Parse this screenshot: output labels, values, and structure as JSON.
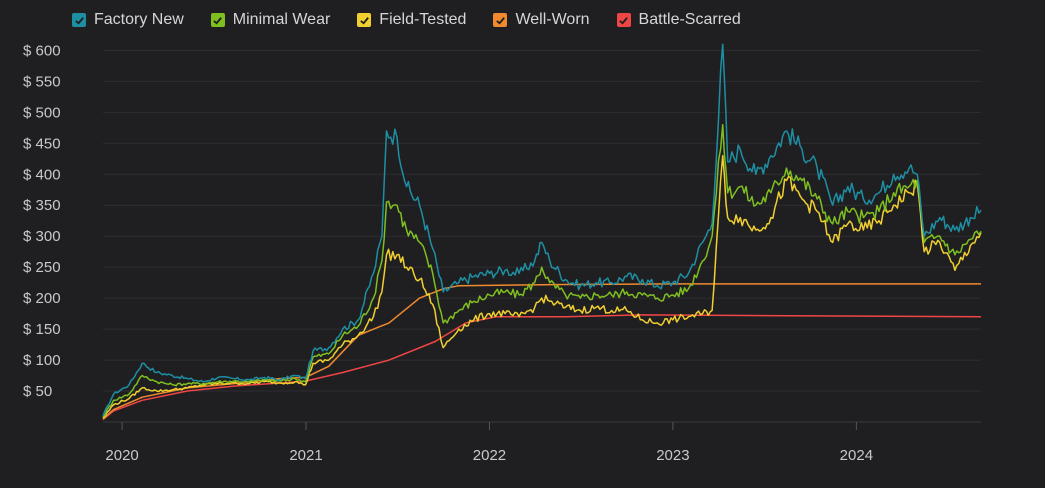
{
  "legend": [
    {
      "label": "Factory New",
      "color": "#1e8fa3",
      "checked": true
    },
    {
      "label": "Minimal Wear",
      "color": "#7fbf1f",
      "checked": true
    },
    {
      "label": "Field-Tested",
      "color": "#f0cf2e",
      "checked": true
    },
    {
      "label": "Well-Worn",
      "color": "#f08a2e",
      "checked": true
    },
    {
      "label": "Battle-Scarred",
      "color": "#f04545",
      "checked": true
    }
  ],
  "chart_data": {
    "type": "line",
    "x_axis": {
      "type": "date",
      "range": [
        "2019-11-24",
        "2024-09-05"
      ],
      "ticks": [
        "2020",
        "2021",
        "2022",
        "2023",
        "2024"
      ]
    },
    "y_axis": {
      "range": [
        0,
        620
      ],
      "ticks": [
        "$ 50",
        "$ 100",
        "$ 150",
        "$ 200",
        "$ 250",
        "$ 300",
        "$ 350",
        "$ 400",
        "$ 450",
        "$ 500",
        "$ 550",
        "$ 600"
      ],
      "tick_values": [
        50,
        100,
        150,
        200,
        250,
        300,
        350,
        400,
        450,
        500,
        550,
        600
      ]
    },
    "grid": true,
    "legend_position": "top-left",
    "series": [
      {
        "name": "Factory New",
        "color": "#1e8fa3",
        "points": [
          [
            "2019-11-24",
            10
          ],
          [
            "2019-12-15",
            45
          ],
          [
            "2020-01-15",
            60
          ],
          [
            "2020-02-10",
            95
          ],
          [
            "2020-03-10",
            80
          ],
          [
            "2020-04-10",
            75
          ],
          [
            "2020-05-10",
            70
          ],
          [
            "2020-06-10",
            65
          ],
          [
            "2020-07-10",
            72
          ],
          [
            "2020-08-10",
            70
          ],
          [
            "2020-09-10",
            68
          ],
          [
            "2020-10-10",
            72
          ],
          [
            "2020-11-10",
            68
          ],
          [
            "2020-12-10",
            75
          ],
          [
            "2020-12-31",
            70
          ],
          [
            "2021-01-15",
            115
          ],
          [
            "2021-02-15",
            120
          ],
          [
            "2021-03-15",
            150
          ],
          [
            "2021-04-15",
            165
          ],
          [
            "2021-05-15",
            240
          ],
          [
            "2021-06-01",
            300
          ],
          [
            "2021-06-10",
            470
          ],
          [
            "2021-07-01",
            460
          ],
          [
            "2021-07-20",
            380
          ],
          [
            "2021-08-15",
            350
          ],
          [
            "2021-09-10",
            280
          ],
          [
            "2021-10-01",
            210
          ],
          [
            "2021-11-01",
            225
          ],
          [
            "2021-12-01",
            235
          ],
          [
            "2022-01-01",
            240
          ],
          [
            "2022-02-01",
            245
          ],
          [
            "2022-03-01",
            240
          ],
          [
            "2022-04-01",
            260
          ],
          [
            "2022-04-15",
            290
          ],
          [
            "2022-05-01",
            260
          ],
          [
            "2022-06-01",
            230
          ],
          [
            "2022-07-01",
            220
          ],
          [
            "2022-08-01",
            225
          ],
          [
            "2022-09-01",
            225
          ],
          [
            "2022-10-01",
            235
          ],
          [
            "2022-11-01",
            230
          ],
          [
            "2022-12-01",
            220
          ],
          [
            "2023-01-01",
            225
          ],
          [
            "2023-02-01",
            240
          ],
          [
            "2023-03-01",
            290
          ],
          [
            "2023-03-20",
            320
          ],
          [
            "2023-04-10",
            610
          ],
          [
            "2023-04-20",
            420
          ],
          [
            "2023-05-15",
            440
          ],
          [
            "2023-06-15",
            400
          ],
          [
            "2023-07-15",
            430
          ],
          [
            "2023-08-15",
            470
          ],
          [
            "2023-09-15",
            440
          ],
          [
            "2023-10-15",
            410
          ],
          [
            "2023-11-15",
            350
          ],
          [
            "2023-12-15",
            380
          ],
          [
            "2024-01-15",
            360
          ],
          [
            "2024-02-15",
            370
          ],
          [
            "2024-03-15",
            400
          ],
          [
            "2024-04-15",
            410
          ],
          [
            "2024-05-01",
            400
          ],
          [
            "2024-05-15",
            300
          ],
          [
            "2024-06-15",
            330
          ],
          [
            "2024-07-15",
            310
          ],
          [
            "2024-08-15",
            330
          ],
          [
            "2024-09-05",
            342
          ]
        ]
      },
      {
        "name": "Minimal Wear",
        "color": "#7fbf1f",
        "points": [
          [
            "2019-11-24",
            8
          ],
          [
            "2019-12-15",
            35
          ],
          [
            "2020-01-15",
            45
          ],
          [
            "2020-02-10",
            75
          ],
          [
            "2020-03-10",
            65
          ],
          [
            "2020-04-10",
            60
          ],
          [
            "2020-05-10",
            62
          ],
          [
            "2020-06-10",
            62
          ],
          [
            "2020-07-10",
            65
          ],
          [
            "2020-08-10",
            66
          ],
          [
            "2020-09-10",
            65
          ],
          [
            "2020-10-10",
            68
          ],
          [
            "2020-11-10",
            66
          ],
          [
            "2020-12-10",
            70
          ],
          [
            "2020-12-31",
            65
          ],
          [
            "2021-01-15",
            105
          ],
          [
            "2021-02-15",
            110
          ],
          [
            "2021-03-15",
            140
          ],
          [
            "2021-04-15",
            155
          ],
          [
            "2021-05-15",
            200
          ],
          [
            "2021-06-01",
            260
          ],
          [
            "2021-06-10",
            355
          ],
          [
            "2021-07-01",
            350
          ],
          [
            "2021-07-20",
            310
          ],
          [
            "2021-08-15",
            290
          ],
          [
            "2021-09-10",
            240
          ],
          [
            "2021-10-01",
            160
          ],
          [
            "2021-11-01",
            180
          ],
          [
            "2021-12-01",
            195
          ],
          [
            "2022-01-01",
            205
          ],
          [
            "2022-02-01",
            210
          ],
          [
            "2022-03-01",
            205
          ],
          [
            "2022-04-01",
            225
          ],
          [
            "2022-04-15",
            250
          ],
          [
            "2022-05-01",
            225
          ],
          [
            "2022-06-01",
            205
          ],
          [
            "2022-07-01",
            200
          ],
          [
            "2022-08-01",
            205
          ],
          [
            "2022-09-01",
            205
          ],
          [
            "2022-10-01",
            210
          ],
          [
            "2022-11-01",
            205
          ],
          [
            "2022-12-01",
            200
          ],
          [
            "2023-01-01",
            205
          ],
          [
            "2023-02-01",
            215
          ],
          [
            "2023-03-01",
            260
          ],
          [
            "2023-03-20",
            300
          ],
          [
            "2023-04-10",
            480
          ],
          [
            "2023-04-20",
            370
          ],
          [
            "2023-05-15",
            380
          ],
          [
            "2023-06-15",
            350
          ],
          [
            "2023-07-15",
            370
          ],
          [
            "2023-08-15",
            410
          ],
          [
            "2023-09-15",
            390
          ],
          [
            "2023-10-15",
            360
          ],
          [
            "2023-11-15",
            320
          ],
          [
            "2023-12-15",
            340
          ],
          [
            "2024-01-15",
            330
          ],
          [
            "2024-02-15",
            340
          ],
          [
            "2024-03-15",
            370
          ],
          [
            "2024-04-15",
            380
          ],
          [
            "2024-05-01",
            390
          ],
          [
            "2024-05-15",
            290
          ],
          [
            "2024-06-15",
            300
          ],
          [
            "2024-07-15",
            270
          ],
          [
            "2024-08-15",
            295
          ],
          [
            "2024-09-05",
            308
          ]
        ]
      },
      {
        "name": "Field-Tested",
        "color": "#f0cf2e",
        "points": [
          [
            "2019-11-24",
            6
          ],
          [
            "2019-12-15",
            28
          ],
          [
            "2020-01-15",
            38
          ],
          [
            "2020-02-10",
            55
          ],
          [
            "2020-03-10",
            50
          ],
          [
            "2020-04-10",
            52
          ],
          [
            "2020-05-10",
            55
          ],
          [
            "2020-06-10",
            60
          ],
          [
            "2020-07-10",
            62
          ],
          [
            "2020-08-10",
            63
          ],
          [
            "2020-09-10",
            62
          ],
          [
            "2020-10-10",
            65
          ],
          [
            "2020-11-10",
            63
          ],
          [
            "2020-12-10",
            65
          ],
          [
            "2020-12-31",
            60
          ],
          [
            "2021-01-15",
            95
          ],
          [
            "2021-02-15",
            100
          ],
          [
            "2021-03-15",
            125
          ],
          [
            "2021-04-15",
            140
          ],
          [
            "2021-05-15",
            170
          ],
          [
            "2021-06-01",
            210
          ],
          [
            "2021-06-10",
            270
          ],
          [
            "2021-07-01",
            270
          ],
          [
            "2021-07-20",
            250
          ],
          [
            "2021-08-15",
            230
          ],
          [
            "2021-09-10",
            190
          ],
          [
            "2021-10-01",
            120
          ],
          [
            "2021-11-01",
            150
          ],
          [
            "2021-12-01",
            165
          ],
          [
            "2022-01-01",
            175
          ],
          [
            "2022-02-01",
            175
          ],
          [
            "2022-03-01",
            170
          ],
          [
            "2022-04-01",
            185
          ],
          [
            "2022-04-15",
            200
          ],
          [
            "2022-05-01",
            195
          ],
          [
            "2022-06-01",
            185
          ],
          [
            "2022-07-01",
            180
          ],
          [
            "2022-08-01",
            185
          ],
          [
            "2022-09-01",
            180
          ],
          [
            "2022-10-01",
            180
          ],
          [
            "2022-11-01",
            165
          ],
          [
            "2022-12-01",
            160
          ],
          [
            "2023-01-01",
            165
          ],
          [
            "2023-02-01",
            170
          ],
          [
            "2023-03-01",
            175
          ],
          [
            "2023-03-20",
            180
          ],
          [
            "2023-04-10",
            430
          ],
          [
            "2023-04-20",
            330
          ],
          [
            "2023-05-15",
            330
          ],
          [
            "2023-06-15",
            310
          ],
          [
            "2023-07-15",
            330
          ],
          [
            "2023-08-15",
            390
          ],
          [
            "2023-09-15",
            360
          ],
          [
            "2023-10-15",
            340
          ],
          [
            "2023-11-15",
            290
          ],
          [
            "2023-12-15",
            320
          ],
          [
            "2024-01-15",
            310
          ],
          [
            "2024-02-15",
            325
          ],
          [
            "2024-03-15",
            350
          ],
          [
            "2024-04-15",
            370
          ],
          [
            "2024-05-01",
            385
          ],
          [
            "2024-05-15",
            275
          ],
          [
            "2024-06-15",
            290
          ],
          [
            "2024-07-15",
            245
          ],
          [
            "2024-08-15",
            285
          ],
          [
            "2024-09-05",
            306
          ]
        ]
      },
      {
        "name": "Well-Worn",
        "color": "#f08a2e",
        "points": [
          [
            "2019-11-24",
            5
          ],
          [
            "2019-12-15",
            20
          ],
          [
            "2020-02-10",
            40
          ],
          [
            "2020-05-10",
            55
          ],
          [
            "2020-08-10",
            62
          ],
          [
            "2020-11-10",
            70
          ],
          [
            "2020-12-31",
            72
          ],
          [
            "2021-02-15",
            90
          ],
          [
            "2021-04-15",
            140
          ],
          [
            "2021-06-15",
            160
          ],
          [
            "2021-08-15",
            200
          ],
          [
            "2021-10-01",
            215
          ],
          [
            "2021-11-01",
            220
          ],
          [
            "2022-06-01",
            222
          ],
          [
            "2023-01-01",
            223
          ],
          [
            "2024-09-05",
            223
          ]
        ]
      },
      {
        "name": "Battle-Scarred",
        "color": "#f04545",
        "points": [
          [
            "2019-11-24",
            4
          ],
          [
            "2019-12-15",
            18
          ],
          [
            "2020-02-10",
            35
          ],
          [
            "2020-05-10",
            50
          ],
          [
            "2020-08-10",
            58
          ],
          [
            "2020-11-10",
            63
          ],
          [
            "2020-12-31",
            66
          ],
          [
            "2021-03-15",
            80
          ],
          [
            "2021-06-15",
            100
          ],
          [
            "2021-09-15",
            130
          ],
          [
            "2021-11-15",
            160
          ],
          [
            "2022-01-15",
            170
          ],
          [
            "2022-06-01",
            170
          ],
          [
            "2022-11-01",
            173
          ],
          [
            "2023-06-01",
            172
          ],
          [
            "2024-09-05",
            170
          ]
        ]
      }
    ]
  }
}
